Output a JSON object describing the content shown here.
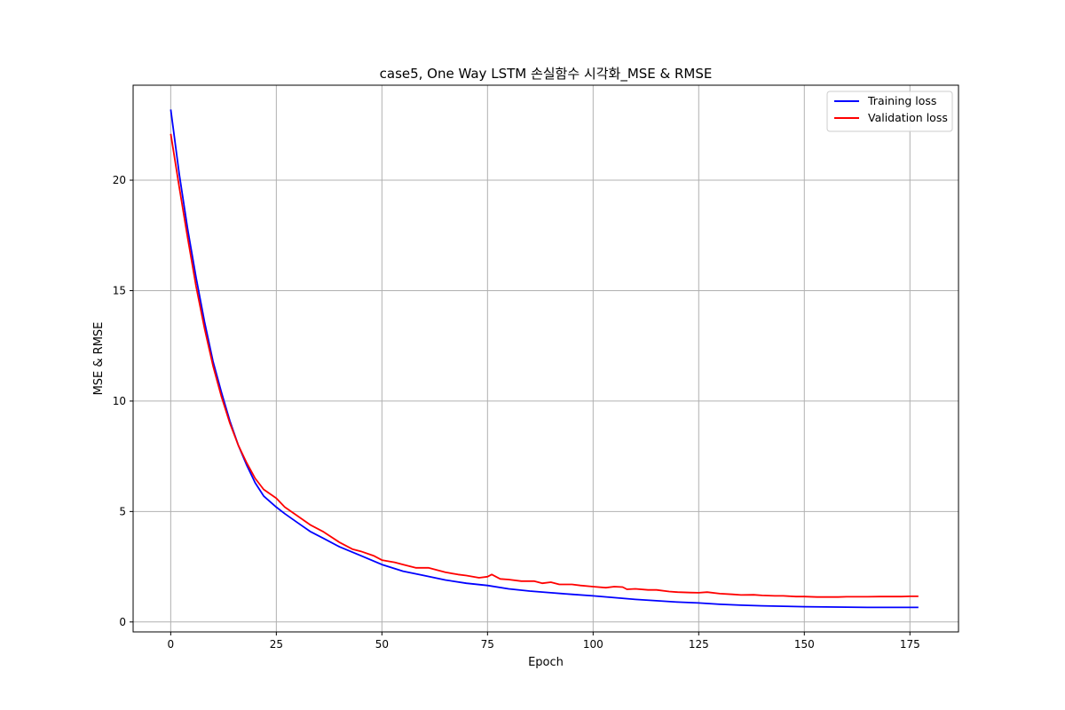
{
  "chart_data": {
    "type": "line",
    "title": "case5, One Way LSTM 손실함수 시각화_MSE & RMSE",
    "xlabel": "Epoch",
    "ylabel": "MSE & RMSE",
    "xlim": [
      -8.9,
      186.5
    ],
    "ylim": [
      -0.45,
      24.3
    ],
    "xticks": [
      0,
      25,
      50,
      75,
      100,
      125,
      150,
      175
    ],
    "yticks": [
      0,
      5,
      10,
      15,
      20
    ],
    "grid": true,
    "legend_position": "top-right",
    "series": [
      {
        "name": "Training loss",
        "color": "#0000ff",
        "points": [
          [
            0,
            23.2
          ],
          [
            2,
            20.3
          ],
          [
            4,
            17.8
          ],
          [
            6,
            15.6
          ],
          [
            8,
            13.6
          ],
          [
            10,
            11.8
          ],
          [
            12,
            10.4
          ],
          [
            14,
            9.1
          ],
          [
            16,
            8.0
          ],
          [
            18,
            7.1
          ],
          [
            20,
            6.3
          ],
          [
            22,
            5.7
          ],
          [
            25,
            5.2
          ],
          [
            27,
            4.9
          ],
          [
            30,
            4.5
          ],
          [
            33,
            4.1
          ],
          [
            36,
            3.8
          ],
          [
            40,
            3.4
          ],
          [
            45,
            3.0
          ],
          [
            50,
            2.6
          ],
          [
            55,
            2.3
          ],
          [
            60,
            2.1
          ],
          [
            65,
            1.9
          ],
          [
            70,
            1.75
          ],
          [
            75,
            1.65
          ],
          [
            80,
            1.5
          ],
          [
            85,
            1.4
          ],
          [
            90,
            1.32
          ],
          [
            95,
            1.25
          ],
          [
            100,
            1.18
          ],
          [
            105,
            1.1
          ],
          [
            110,
            1.02
          ],
          [
            115,
            0.96
          ],
          [
            120,
            0.9
          ],
          [
            125,
            0.86
          ],
          [
            130,
            0.8
          ],
          [
            135,
            0.76
          ],
          [
            140,
            0.73
          ],
          [
            145,
            0.71
          ],
          [
            150,
            0.69
          ],
          [
            155,
            0.68
          ],
          [
            160,
            0.67
          ],
          [
            165,
            0.66
          ],
          [
            170,
            0.66
          ],
          [
            175,
            0.66
          ],
          [
            177,
            0.66
          ]
        ]
      },
      {
        "name": "Validation loss",
        "color": "#ff0000",
        "points": [
          [
            0,
            22.1
          ],
          [
            2,
            19.7
          ],
          [
            4,
            17.4
          ],
          [
            6,
            15.2
          ],
          [
            8,
            13.3
          ],
          [
            10,
            11.6
          ],
          [
            12,
            10.2
          ],
          [
            14,
            9.0
          ],
          [
            16,
            8.0
          ],
          [
            18,
            7.2
          ],
          [
            20,
            6.5
          ],
          [
            22,
            6.0
          ],
          [
            25,
            5.6
          ],
          [
            27,
            5.2
          ],
          [
            30,
            4.8
          ],
          [
            33,
            4.4
          ],
          [
            36,
            4.1
          ],
          [
            40,
            3.6
          ],
          [
            43,
            3.3
          ],
          [
            45,
            3.2
          ],
          [
            48,
            3.0
          ],
          [
            50,
            2.8
          ],
          [
            53,
            2.7
          ],
          [
            55,
            2.6
          ],
          [
            58,
            2.45
          ],
          [
            61,
            2.45
          ],
          [
            63,
            2.35
          ],
          [
            65,
            2.25
          ],
          [
            68,
            2.15
          ],
          [
            70,
            2.1
          ],
          [
            73,
            2.0
          ],
          [
            75,
            2.05
          ],
          [
            76,
            2.15
          ],
          [
            78,
            1.95
          ],
          [
            80,
            1.92
          ],
          [
            83,
            1.85
          ],
          [
            86,
            1.85
          ],
          [
            88,
            1.75
          ],
          [
            90,
            1.8
          ],
          [
            92,
            1.7
          ],
          [
            95,
            1.7
          ],
          [
            97,
            1.65
          ],
          [
            100,
            1.6
          ],
          [
            103,
            1.55
          ],
          [
            105,
            1.6
          ],
          [
            107,
            1.58
          ],
          [
            108,
            1.48
          ],
          [
            110,
            1.5
          ],
          [
            113,
            1.45
          ],
          [
            115,
            1.45
          ],
          [
            118,
            1.38
          ],
          [
            120,
            1.35
          ],
          [
            123,
            1.33
          ],
          [
            125,
            1.32
          ],
          [
            127,
            1.35
          ],
          [
            130,
            1.28
          ],
          [
            133,
            1.25
          ],
          [
            135,
            1.22
          ],
          [
            138,
            1.23
          ],
          [
            140,
            1.2
          ],
          [
            143,
            1.18
          ],
          [
            145,
            1.18
          ],
          [
            148,
            1.15
          ],
          [
            150,
            1.15
          ],
          [
            153,
            1.13
          ],
          [
            155,
            1.13
          ],
          [
            158,
            1.13
          ],
          [
            160,
            1.14
          ],
          [
            163,
            1.14
          ],
          [
            165,
            1.14
          ],
          [
            168,
            1.15
          ],
          [
            170,
            1.15
          ],
          [
            173,
            1.15
          ],
          [
            175,
            1.16
          ],
          [
            177,
            1.16
          ]
        ]
      }
    ]
  }
}
